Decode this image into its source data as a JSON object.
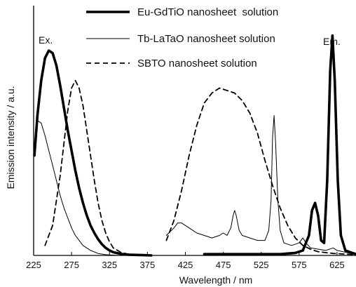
{
  "chart_data": {
    "type": "line",
    "title": "",
    "xlabel": "Wavelength / nm",
    "ylabel": "Emission intensity / a.u.",
    "xlim": [
      225,
      650
    ],
    "ylim": [
      0,
      1.0
    ],
    "x_ticks": [
      225,
      275,
      325,
      375,
      425,
      475,
      525,
      575,
      625
    ],
    "y_ticks_shown": false,
    "grid": false,
    "legend_position": "top",
    "annotations": [
      {
        "text": "Ex.",
        "x": 240,
        "y": 0.92
      },
      {
        "text": "Em.",
        "x": 620,
        "y": 0.92
      }
    ],
    "series": [
      {
        "name": "Eu-GdTiO nanosheet  solution",
        "style": "thick-solid",
        "color": "#000000",
        "segments": [
          [
            [
              226,
              0.4
            ],
            [
              230,
              0.56
            ],
            [
              235,
              0.7
            ],
            [
              240,
              0.79
            ],
            [
              245,
              0.82
            ],
            [
              250,
              0.81
            ],
            [
              255,
              0.76
            ],
            [
              260,
              0.68
            ],
            [
              265,
              0.59
            ],
            [
              270,
              0.5
            ],
            [
              275,
              0.42
            ],
            [
              280,
              0.34
            ],
            [
              285,
              0.27
            ],
            [
              290,
              0.21
            ],
            [
              295,
              0.16
            ],
            [
              300,
              0.12
            ],
            [
              305,
              0.09
            ],
            [
              310,
              0.065
            ],
            [
              315,
              0.045
            ],
            [
              320,
              0.03
            ],
            [
              325,
              0.02
            ],
            [
              330,
              0.013
            ],
            [
              340,
              0.006
            ],
            [
              350,
              0.003
            ],
            [
              360,
              0.002
            ],
            [
              370,
              0.001
            ],
            [
              380,
              0
            ]
          ],
          [
            [
              450,
              0.005
            ],
            [
              500,
              0.005
            ],
            [
              550,
              0.005
            ],
            [
              570,
              0.01
            ],
            [
              580,
              0.02
            ],
            [
              588,
              0.08
            ],
            [
              592,
              0.18
            ],
            [
              596,
              0.21
            ],
            [
              600,
              0.16
            ],
            [
              604,
              0.06
            ],
            [
              608,
              0.05
            ],
            [
              612,
              0.3
            ],
            [
              616,
              0.74
            ],
            [
              619,
              0.88
            ],
            [
              622,
              0.7
            ],
            [
              626,
              0.3
            ],
            [
              630,
              0.08
            ],
            [
              636,
              0.02
            ],
            [
              645,
              0.01
            ],
            [
              650,
              0.005
            ]
          ]
        ]
      },
      {
        "name": "Tb-LaTaO nanosheet solution",
        "style": "thin-solid",
        "color": "#000000",
        "segments": [
          [
            [
              226,
              0.45
            ],
            [
              230,
              0.54
            ],
            [
              235,
              0.53
            ],
            [
              240,
              0.48
            ],
            [
              245,
              0.42
            ],
            [
              250,
              0.36
            ],
            [
              255,
              0.3
            ],
            [
              260,
              0.24
            ],
            [
              265,
              0.19
            ],
            [
              270,
              0.15
            ],
            [
              275,
              0.11
            ],
            [
              280,
              0.08
            ],
            [
              285,
              0.06
            ],
            [
              290,
              0.04
            ],
            [
              295,
              0.03
            ],
            [
              300,
              0.02
            ],
            [
              310,
              0.008
            ],
            [
              320,
              0.003
            ],
            [
              335,
              0
            ]
          ],
          [
            [
              400,
              0.08
            ],
            [
              410,
              0.11
            ],
            [
              415,
              0.13
            ],
            [
              420,
              0.13
            ],
            [
              425,
              0.12
            ],
            [
              430,
              0.11
            ],
            [
              440,
              0.09
            ],
            [
              450,
              0.08
            ],
            [
              460,
              0.07
            ],
            [
              470,
              0.08
            ],
            [
              475,
              0.09
            ],
            [
              480,
              0.08
            ],
            [
              485,
              0.11
            ],
            [
              488,
              0.16
            ],
            [
              490,
              0.18
            ],
            [
              492,
              0.16
            ],
            [
              496,
              0.1
            ],
            [
              500,
              0.08
            ],
            [
              510,
              0.07
            ],
            [
              520,
              0.06
            ],
            [
              530,
              0.06
            ],
            [
              535,
              0.1
            ],
            [
              538,
              0.22
            ],
            [
              540,
              0.47
            ],
            [
              542,
              0.56
            ],
            [
              544,
              0.45
            ],
            [
              547,
              0.22
            ],
            [
              550,
              0.1
            ],
            [
              555,
              0.05
            ],
            [
              565,
              0.04
            ],
            [
              575,
              0.05
            ],
            [
              580,
              0.07
            ],
            [
              584,
              0.05
            ],
            [
              590,
              0.03
            ],
            [
              610,
              0.02
            ],
            [
              620,
              0.03
            ],
            [
              625,
              0.02
            ],
            [
              640,
              0.01
            ],
            [
              650,
              0.005
            ]
          ]
        ]
      },
      {
        "name": "SBTO nanosheet solution",
        "style": "dashed",
        "color": "#000000",
        "segments": [
          [
            [
              240,
              0.04
            ],
            [
              250,
              0.12
            ],
            [
              260,
              0.32
            ],
            [
              265,
              0.45
            ],
            [
              270,
              0.58
            ],
            [
              275,
              0.67
            ],
            [
              280,
              0.7
            ],
            [
              285,
              0.67
            ],
            [
              290,
              0.6
            ],
            [
              295,
              0.5
            ],
            [
              300,
              0.4
            ],
            [
              305,
              0.3
            ],
            [
              310,
              0.21
            ],
            [
              315,
              0.14
            ],
            [
              320,
              0.09
            ],
            [
              325,
              0.055
            ],
            [
              330,
              0.03
            ],
            [
              340,
              0.012
            ],
            [
              350,
              0.005
            ],
            [
              360,
              0.002
            ],
            [
              375,
              0
            ]
          ],
          [
            [
              400,
              0.06
            ],
            [
              410,
              0.14
            ],
            [
              420,
              0.26
            ],
            [
              430,
              0.4
            ],
            [
              440,
              0.52
            ],
            [
              450,
              0.61
            ],
            [
              460,
              0.65
            ],
            [
              470,
              0.67
            ],
            [
              480,
              0.66
            ],
            [
              490,
              0.65
            ],
            [
              500,
              0.62
            ],
            [
              510,
              0.57
            ],
            [
              520,
              0.49
            ],
            [
              530,
              0.38
            ],
            [
              540,
              0.28
            ],
            [
              550,
              0.19
            ],
            [
              560,
              0.12
            ],
            [
              570,
              0.07
            ],
            [
              580,
              0.04
            ],
            [
              590,
              0.025
            ],
            [
              600,
              0.015
            ],
            [
              620,
              0.008
            ],
            [
              650,
              0.003
            ]
          ]
        ]
      }
    ]
  }
}
